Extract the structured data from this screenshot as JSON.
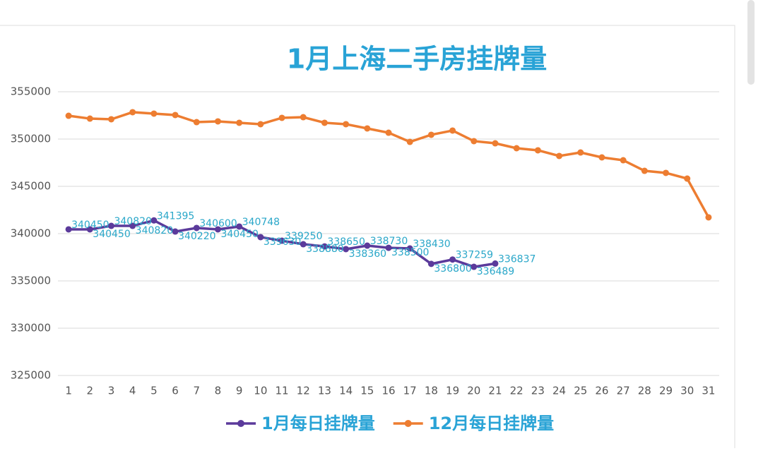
{
  "chart_data": {
    "type": "line",
    "title": "1月上海二手房挂牌量",
    "categories": [
      "1",
      "2",
      "3",
      "4",
      "5",
      "6",
      "7",
      "8",
      "9",
      "10",
      "11",
      "12",
      "13",
      "14",
      "15",
      "16",
      "17",
      "18",
      "19",
      "20",
      "21",
      "22",
      "23",
      "24",
      "25",
      "26",
      "27",
      "28",
      "29",
      "30",
      "31"
    ],
    "ylim": [
      325000,
      355000
    ],
    "yticks": [
      325000,
      330000,
      335000,
      340000,
      345000,
      350000,
      355000
    ],
    "grid": true,
    "legend": "bottom",
    "series": [
      {
        "name": "1月每日挂牌量",
        "color": "#5b3a9b",
        "data_labels": true,
        "label_color": "#2aa7c9",
        "values": [
          340450,
          340450,
          340820,
          340820,
          341395,
          340220,
          340600,
          340450,
          340748,
          339630,
          339250,
          338880,
          338650,
          338360,
          338730,
          338500,
          338430,
          336800,
          337259,
          336489,
          336837,
          null,
          null,
          null,
          null,
          null,
          null,
          null,
          null,
          null,
          null
        ]
      },
      {
        "name": "12月每日挂牌量",
        "color": "#ed7d31",
        "values": [
          352460,
          352160,
          352090,
          352840,
          352690,
          352540,
          351790,
          351870,
          351720,
          351570,
          352240,
          352310,
          351720,
          351570,
          351120,
          350670,
          349700,
          350450,
          350900,
          349780,
          349550,
          349030,
          348810,
          348210,
          348580,
          348060,
          347760,
          346640,
          346420,
          345820,
          341720
        ]
      }
    ]
  }
}
